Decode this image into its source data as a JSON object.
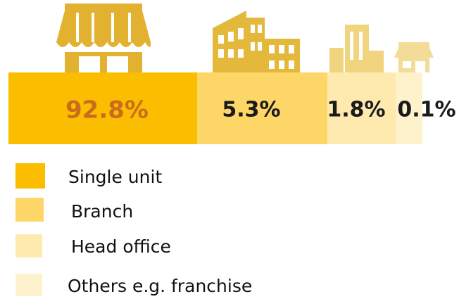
{
  "segments": [
    {
      "label": "Single unit",
      "value_label": "92.8%"
    },
    {
      "label": "Branch",
      "value_label": "5.3%"
    },
    {
      "label": "Head office",
      "value_label": "1.8%"
    },
    {
      "label": "Others e.g. franchise",
      "value_label": "0.1%"
    }
  ]
}
